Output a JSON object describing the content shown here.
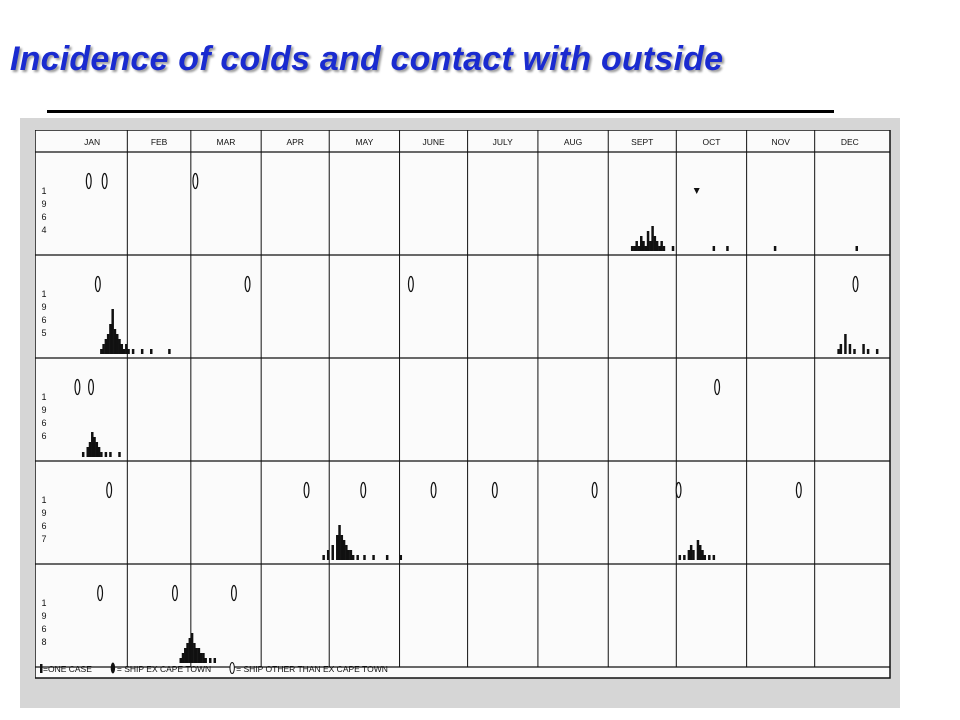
{
  "page": {
    "title": "Incidence of colds and contact with outside"
  },
  "colors": {
    "title": "#1a2bd0",
    "background": "#ffffff",
    "scan_background": "#d6d6d6",
    "chart_background": "#fbfbfb",
    "ink": "#111111"
  },
  "chart_data": {
    "type": "bar",
    "title": "",
    "xlabel": "",
    "ylabel": "",
    "months": [
      "JAN",
      "FEB",
      "MAR",
      "APR",
      "MAY",
      "JUNE",
      "JULY",
      "AUG",
      "SEPT",
      "OCT",
      "NOV",
      "DEC"
    ],
    "x_unit": "day of year (1-365)",
    "xlim": [
      1,
      365
    ],
    "grid": true,
    "legend": {
      "placement": "bottom",
      "entries": [
        {
          "symbol": "bar",
          "label": "=ONE CASE"
        },
        {
          "symbol": "ship-cape-town",
          "label": "= SHIP EX CAPE TOWN"
        },
        {
          "symbol": "ship-other",
          "label": "= SHIP OTHER THAN EX CAPE TOWN"
        }
      ]
    },
    "series": [
      {
        "name": "1964",
        "year_digits": [
          "1",
          "9",
          "6",
          "4"
        ],
        "ships_cape_town": [
          15,
          22,
          62
        ],
        "ships_other": [
          283
        ],
        "cases": [
          [
            254,
            1
          ],
          [
            255,
            1
          ],
          [
            256,
            2
          ],
          [
            257,
            1
          ],
          [
            258,
            3
          ],
          [
            259,
            2
          ],
          [
            260,
            1
          ],
          [
            261,
            4
          ],
          [
            262,
            2
          ],
          [
            263,
            5
          ],
          [
            264,
            3
          ],
          [
            265,
            2
          ],
          [
            266,
            1
          ],
          [
            267,
            2
          ],
          [
            268,
            1
          ],
          [
            272,
            1
          ],
          [
            290,
            1
          ],
          [
            296,
            1
          ],
          [
            317,
            1
          ],
          [
            353,
            1
          ]
        ]
      },
      {
        "name": "1965",
        "year_digits": [
          "1",
          "9",
          "6",
          "5"
        ],
        "ships_cape_town": [
          19,
          85,
          157,
          353
        ],
        "ships_other": [],
        "cases": [
          [
            20,
            1
          ],
          [
            21,
            2
          ],
          [
            22,
            3
          ],
          [
            23,
            4
          ],
          [
            24,
            6
          ],
          [
            25,
            9
          ],
          [
            26,
            5
          ],
          [
            27,
            4
          ],
          [
            28,
            3
          ],
          [
            29,
            2
          ],
          [
            30,
            1
          ],
          [
            31,
            2
          ],
          [
            32,
            1
          ],
          [
            34,
            1
          ],
          [
            38,
            1
          ],
          [
            42,
            1
          ],
          [
            50,
            1
          ],
          [
            345,
            1
          ],
          [
            346,
            2
          ],
          [
            348,
            4
          ],
          [
            350,
            2
          ],
          [
            352,
            1
          ],
          [
            356,
            2
          ],
          [
            358,
            1
          ],
          [
            362,
            1
          ]
        ]
      },
      {
        "name": "1966",
        "year_digits": [
          "1",
          "9",
          "6",
          "6"
        ],
        "ships_cape_town": [
          10,
          16,
          292
        ],
        "ships_other": [],
        "cases": [
          [
            12,
            1
          ],
          [
            14,
            2
          ],
          [
            15,
            3
          ],
          [
            16,
            5
          ],
          [
            17,
            4
          ],
          [
            18,
            3
          ],
          [
            19,
            2
          ],
          [
            20,
            1
          ],
          [
            22,
            1
          ],
          [
            24,
            1
          ],
          [
            28,
            1
          ]
        ]
      },
      {
        "name": "1967",
        "year_digits": [
          "1",
          "9",
          "6",
          "7"
        ],
        "ships_cape_town": [
          24,
          111,
          136,
          167,
          194,
          238,
          275,
          328
        ],
        "ships_other": [],
        "cases": [
          [
            118,
            1
          ],
          [
            120,
            2
          ],
          [
            122,
            3
          ],
          [
            124,
            5
          ],
          [
            125,
            7
          ],
          [
            126,
            5
          ],
          [
            127,
            4
          ],
          [
            128,
            3
          ],
          [
            129,
            2
          ],
          [
            130,
            2
          ],
          [
            131,
            1
          ],
          [
            133,
            1
          ],
          [
            136,
            1
          ],
          [
            140,
            1
          ],
          [
            146,
            1
          ],
          [
            152,
            1
          ],
          [
            275,
            1
          ],
          [
            277,
            1
          ],
          [
            279,
            2
          ],
          [
            280,
            3
          ],
          [
            281,
            2
          ],
          [
            283,
            4
          ],
          [
            284,
            3
          ],
          [
            285,
            2
          ],
          [
            286,
            1
          ],
          [
            288,
            1
          ],
          [
            290,
            1
          ]
        ]
      },
      {
        "name": "1968",
        "year_digits": [
          "1",
          "9",
          "6",
          "8"
        ],
        "ships_cape_town": [
          20,
          53,
          79
        ],
        "ships_other": [],
        "cases": [
          [
            55,
            1
          ],
          [
            56,
            2
          ],
          [
            57,
            3
          ],
          [
            58,
            4
          ],
          [
            59,
            5
          ],
          [
            60,
            6
          ],
          [
            61,
            4
          ],
          [
            62,
            3
          ],
          [
            63,
            3
          ],
          [
            64,
            2
          ],
          [
            65,
            2
          ],
          [
            66,
            1
          ],
          [
            68,
            1
          ],
          [
            70,
            1
          ]
        ]
      }
    ]
  }
}
